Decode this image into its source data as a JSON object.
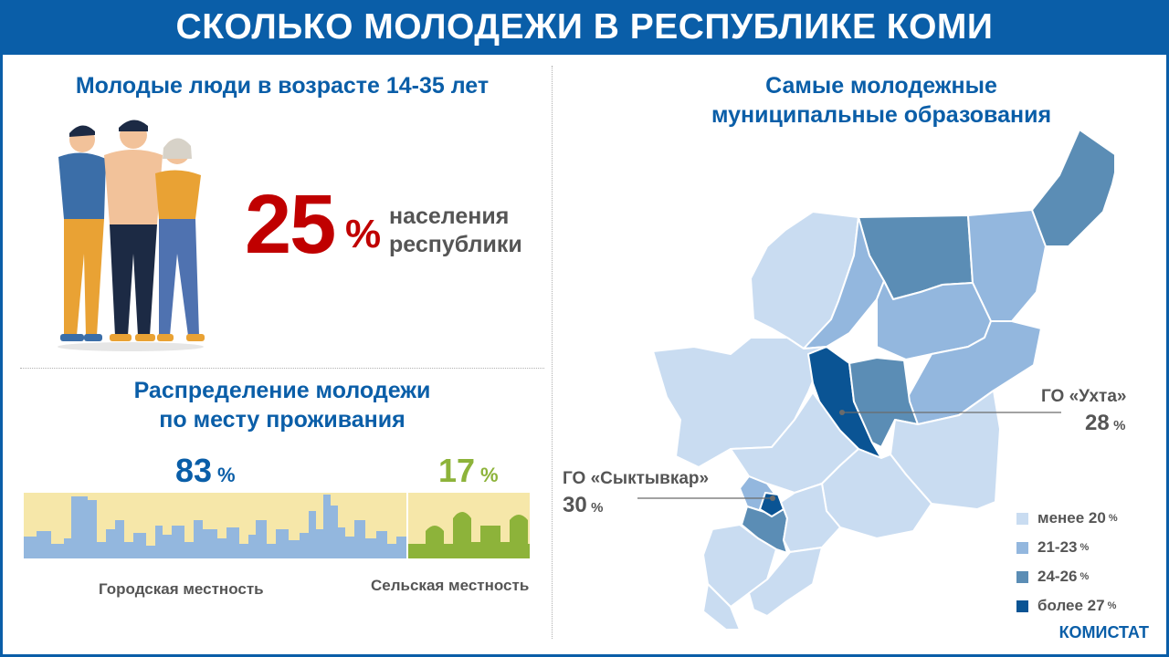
{
  "title": "СКОЛЬКО МОЛОДЕЖИ В РЕСПУБЛИКЕ КОМИ",
  "youth": {
    "heading": "Молодые люди в возрасте 14-35 лет",
    "value": "25",
    "unit": "%",
    "label_line1": "населения",
    "label_line2": "республики"
  },
  "distribution": {
    "heading_line1": "Распределение молодежи",
    "heading_line2": "по месту проживания",
    "urban": {
      "value": "83",
      "unit": "%",
      "label": "Городская местность",
      "share": 83
    },
    "rural": {
      "value": "17",
      "unit": "%",
      "label": "Сельская местность",
      "share": 17
    },
    "colors": {
      "urban": "#0a5ea8",
      "rural": "#8db33a"
    }
  },
  "map": {
    "heading_line1": "Самые молодежные",
    "heading_line2": "муниципальные образования",
    "callouts": [
      {
        "name": "ГО «Ухта»",
        "value": "28",
        "unit": "%"
      },
      {
        "name": "ГО «Сыктывкар»",
        "value": "30",
        "unit": "%"
      }
    ],
    "legend": [
      {
        "label": "менее 20",
        "unit": "%",
        "color": "#c9dcf1"
      },
      {
        "label": "21-23",
        "unit": "%",
        "color": "#93b7de"
      },
      {
        "label": "24-26",
        "unit": "%",
        "color": "#5b8db5"
      },
      {
        "label": "более 27",
        "unit": "%",
        "color": "#0a5494"
      }
    ]
  },
  "source": "КОМИСТАТ"
}
